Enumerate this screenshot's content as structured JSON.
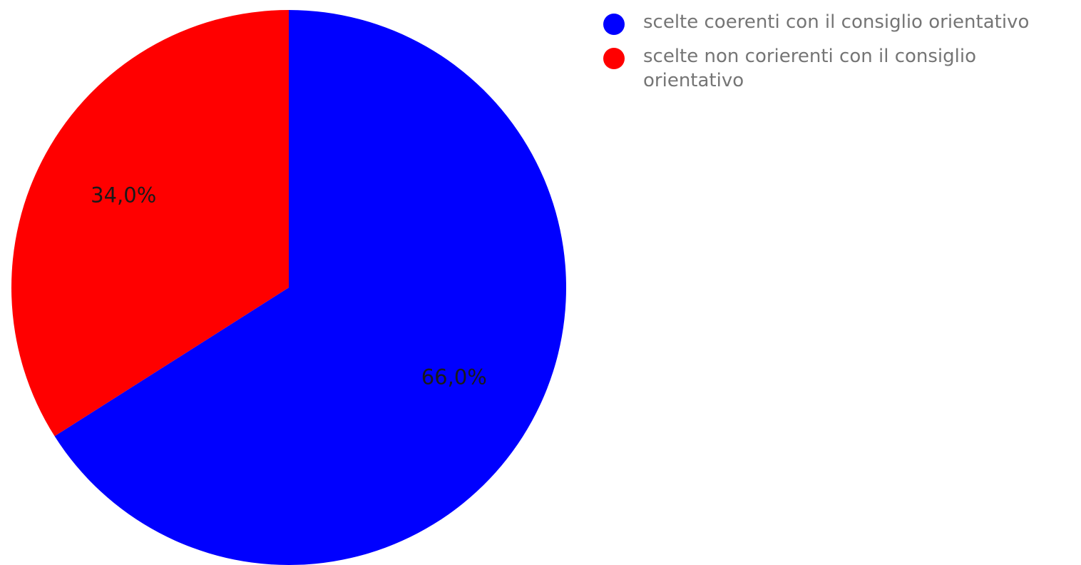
{
  "chart_data": {
    "type": "pie",
    "title": "",
    "slices": [
      {
        "label": "scelte coerenti con il consiglio orientativo",
        "value": 66.0,
        "display": "66,0%",
        "color": "#0000ff"
      },
      {
        "label": "scelte non corierenti con il consiglio orientativo",
        "value": 34.0,
        "display": "34,0%",
        "color": "#ff0000"
      }
    ],
    "start_angle": "12 o'clock",
    "direction": "clockwise",
    "legend_position": "right-top"
  },
  "legend": {
    "items": [
      {
        "label": "scelte coerenti con il consiglio orientativo",
        "color": "#0000ff",
        "icon": "circle-marker"
      },
      {
        "label": "scelte non corierenti con il consiglio orientativo",
        "color": "#ff0000",
        "icon": "circle-marker"
      }
    ]
  }
}
